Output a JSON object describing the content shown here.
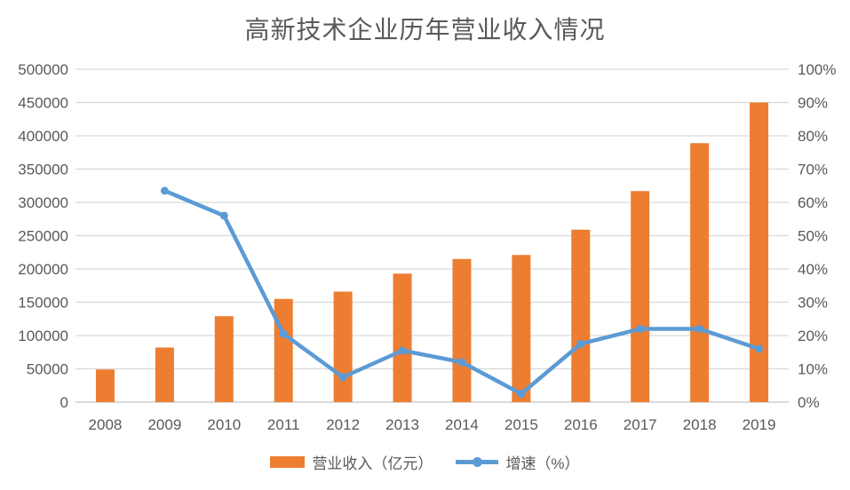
{
  "title": "高新技术企业历年营业收入情况",
  "colors": {
    "bar": "#ED7D31",
    "line": "#5B9BD5",
    "grid": "#D9D9D9",
    "axis_line": "#D6D6D6",
    "text": "#595959",
    "background": "#FFFFFF"
  },
  "chart_data": {
    "type": "combo (bar + line)",
    "title": "高新技术企业历年营业收入情况",
    "categories": [
      "2008",
      "2009",
      "2010",
      "2011",
      "2012",
      "2013",
      "2014",
      "2015",
      "2016",
      "2017",
      "2018",
      "2019"
    ],
    "series": [
      {
        "name": "营业收入（亿元）",
        "type": "bar",
        "axis": "left",
        "color": "#ED7D31",
        "values": [
          49000,
          82000,
          129000,
          155000,
          166000,
          193000,
          215000,
          221000,
          259000,
          317000,
          389000,
          450000
        ]
      },
      {
        "name": "增速（%）",
        "type": "line",
        "axis": "right",
        "color": "#5B9BD5",
        "values": [
          null,
          63.5,
          56,
          20.5,
          7.5,
          15.5,
          12,
          2.5,
          17.5,
          22,
          22,
          16
        ]
      }
    ],
    "left_axis": {
      "min": 0,
      "max": 500000,
      "step": 50000,
      "tick_labels": [
        "0",
        "50000",
        "100000",
        "150000",
        "200000",
        "250000",
        "300000",
        "350000",
        "400000",
        "450000",
        "500000"
      ]
    },
    "right_axis": {
      "min": 0,
      "max": 100,
      "step": 10,
      "suffix": "%",
      "tick_labels": [
        "0%",
        "10%",
        "20%",
        "30%",
        "40%",
        "50%",
        "60%",
        "70%",
        "80%",
        "90%",
        "100%"
      ]
    },
    "grid": true,
    "legend_position": "bottom"
  }
}
